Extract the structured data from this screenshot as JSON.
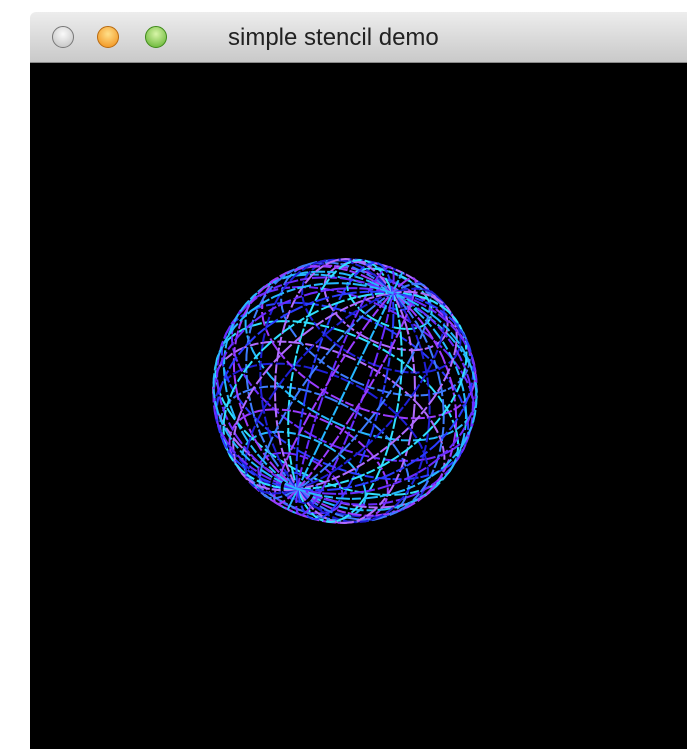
{
  "window": {
    "title": "simple stencil demo"
  }
}
